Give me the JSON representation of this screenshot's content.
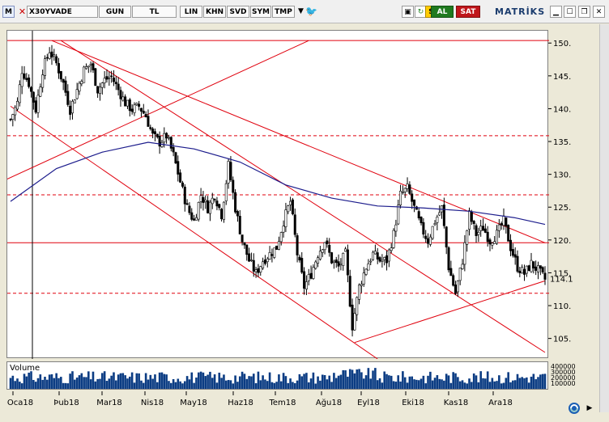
{
  "toolbar": {
    "m_label": "M",
    "symbol": "X30YVADE",
    "period": "GUN",
    "currency": "TL",
    "buttons": [
      "LIN",
      "KHN",
      "SVD",
      "SYM",
      "TMP"
    ],
    "buy_label": "AL",
    "sell_label": "SAT",
    "brand": "MATRİKS"
  },
  "colors": {
    "candle": "#000000",
    "trendline": "#e0000d",
    "moving_average": "#1c1c8c",
    "volume": "#0b3c83",
    "buy_bg": "#1f7a1f",
    "sell_bg": "#c0161b"
  },
  "price_axis": {
    "ticks": [
      "150.",
      "145.",
      "140.",
      "135.",
      "130.",
      "125.",
      "120.",
      "115.",
      "110.",
      "105."
    ],
    "current_price": "114.1"
  },
  "volume_panel": {
    "title": "Volume",
    "ticks": [
      "400000",
      "300000",
      "200000",
      "100000"
    ]
  },
  "chart_data": {
    "type": "candlestick",
    "symbol": "X30YVADE",
    "ylim": [
      102,
      152
    ],
    "x_labels": [
      "Oca18",
      "Þub18",
      "Mar18",
      "Nis18",
      "May18",
      "Haz18",
      "Tem18",
      "Ağu18",
      "Eyl18",
      "Eki18",
      "Kas18",
      "Ara18"
    ],
    "price_close_path": [
      [
        0,
        138.5
      ],
      [
        3,
        141
      ],
      [
        5,
        146
      ],
      [
        8,
        144
      ],
      [
        11,
        140
      ],
      [
        14,
        146
      ],
      [
        17,
        149
      ],
      [
        20,
        147
      ],
      [
        23,
        144
      ],
      [
        26,
        140
      ],
      [
        29,
        143
      ],
      [
        32,
        146
      ],
      [
        35,
        147
      ],
      [
        38,
        143
      ],
      [
        41,
        144.5
      ],
      [
        44,
        145
      ],
      [
        47,
        143
      ],
      [
        50,
        141
      ],
      [
        53,
        140
      ],
      [
        56,
        140.5
      ],
      [
        59,
        139
      ],
      [
        62,
        136
      ],
      [
        65,
        135
      ],
      [
        68,
        136
      ],
      [
        71,
        133
      ],
      [
        74,
        129
      ],
      [
        77,
        125
      ],
      [
        80,
        123
      ],
      [
        83,
        127
      ],
      [
        86,
        125
      ],
      [
        89,
        127
      ],
      [
        92,
        124
      ],
      [
        95,
        131.5
      ],
      [
        98,
        125
      ],
      [
        101,
        120
      ],
      [
        104,
        117
      ],
      [
        107,
        115
      ],
      [
        110,
        117
      ],
      [
        113,
        118
      ],
      [
        116,
        119
      ],
      [
        119,
        123
      ],
      [
        122,
        126
      ],
      [
        125,
        118
      ],
      [
        128,
        113
      ],
      [
        131,
        115
      ],
      [
        134,
        118
      ],
      [
        137,
        120
      ],
      [
        140,
        117
      ],
      [
        143,
        116
      ],
      [
        146,
        118
      ],
      [
        149,
        107
      ],
      [
        152,
        113
      ],
      [
        155,
        116
      ],
      [
        158,
        118
      ],
      [
        161,
        117
      ],
      [
        164,
        117
      ],
      [
        167,
        121
      ],
      [
        170,
        127
      ],
      [
        173,
        128
      ],
      [
        176,
        125
      ],
      [
        179,
        122
      ],
      [
        182,
        120
      ],
      [
        185,
        123
      ],
      [
        188,
        125
      ],
      [
        191,
        116
      ],
      [
        194,
        112
      ],
      [
        197,
        117
      ],
      [
        200,
        124
      ],
      [
        203,
        121
      ],
      [
        206,
        122
      ],
      [
        209,
        120
      ],
      [
        212,
        121
      ],
      [
        215,
        123
      ],
      [
        218,
        119
      ],
      [
        221,
        116
      ],
      [
        224,
        115
      ],
      [
        227,
        116.5
      ],
      [
        230,
        115.5
      ],
      [
        233,
        114.1
      ]
    ],
    "moving_average": [
      [
        0,
        126
      ],
      [
        20,
        131
      ],
      [
        40,
        133.5
      ],
      [
        60,
        135
      ],
      [
        80,
        134
      ],
      [
        100,
        132
      ],
      [
        120,
        128.5
      ],
      [
        140,
        126.5
      ],
      [
        160,
        125.3
      ],
      [
        180,
        125
      ],
      [
        200,
        124.5
      ],
      [
        220,
        123.5
      ],
      [
        233,
        122.5
      ]
    ],
    "horizontal_levels": [
      {
        "y": 150.5,
        "style": "solid"
      },
      {
        "y": 136,
        "style": "dashed"
      },
      {
        "y": 127,
        "style": "dashed"
      },
      {
        "y": 119.7,
        "style": "solid"
      },
      {
        "y": 112,
        "style": "dashed"
      }
    ],
    "trendlines": [
      {
        "from": [
          18,
          150.5
        ],
        "to": [
          233,
          119.7
        ]
      },
      {
        "from": [
          0,
          140.5
        ],
        "to": [
          160,
          102
        ]
      },
      {
        "from": [
          -4,
          129
        ],
        "to": [
          130,
          150.5
        ]
      },
      {
        "from": [
          22,
          150.5
        ],
        "to": [
          233,
          103
        ]
      },
      {
        "from": [
          150,
          104.5
        ],
        "to": [
          233,
          113.9
        ]
      }
    ]
  }
}
